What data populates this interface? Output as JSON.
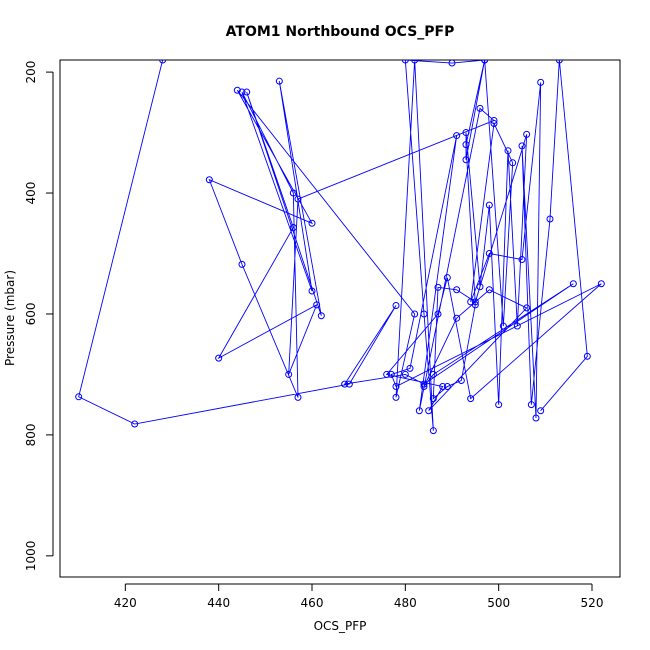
{
  "chart_data": {
    "type": "line",
    "title": "ATOM1 Northbound OCS_PFP",
    "xlabel": "OCS_PFP",
    "ylabel": "Pressure (mbar)",
    "xlim": [
      406,
      526
    ],
    "ylim": [
      1035,
      180
    ],
    "y_inverted": true,
    "xticks": [
      420,
      440,
      460,
      480,
      500,
      520
    ],
    "yticks": [
      200,
      400,
      600,
      800,
      1000
    ],
    "grid": false,
    "legend": "none",
    "series_color": "#0000ff",
    "marker": "open-circle",
    "series": [
      {
        "x": [
          428,
          410,
          422,
          468,
          478,
          467,
          480,
          484,
          516,
          486,
          484,
          491,
          498,
          506,
          485,
          488,
          476,
          487,
          489,
          494,
          522,
          478,
          477,
          481,
          491,
          483,
          496,
          499,
          457,
          455,
          461,
          440,
          456,
          446,
          462,
          453,
          460,
          445,
          456,
          457,
          445,
          438,
          460,
          444,
          482,
          478,
          482,
          486,
          484,
          480,
          490,
          497,
          493,
          493,
          496,
          498,
          500,
          502,
          504,
          506,
          495,
          491,
          487,
          486,
          489,
          492,
          495,
          493,
          497,
          501,
          503,
          499,
          494,
          498,
          505,
          509,
          508,
          505,
          507,
          511,
          513,
          519,
          509
        ],
        "y": [
          180,
          737,
          782,
          716,
          586,
          716,
          700,
          716,
          550,
          700,
          720,
          607,
          560,
          590,
          760,
          720,
          700,
          600,
          540,
          740,
          550,
          720,
          700,
          690,
          305,
          760,
          260,
          280,
          410,
          700,
          585,
          673,
          457,
          233,
          603,
          215,
          562,
          233,
          400,
          738,
          518,
          378,
          450,
          230,
          600,
          738,
          180,
          793,
          600,
          180,
          185,
          180,
          345,
          300,
          555,
          420,
          750,
          330,
          620,
          303,
          580,
          560,
          556,
          740,
          720,
          710,
          585,
          320,
          180,
          620,
          350,
          285,
          580,
          500,
          510,
          217,
          772,
          322,
          750,
          443,
          180,
          670,
          760
        ]
      }
    ]
  }
}
